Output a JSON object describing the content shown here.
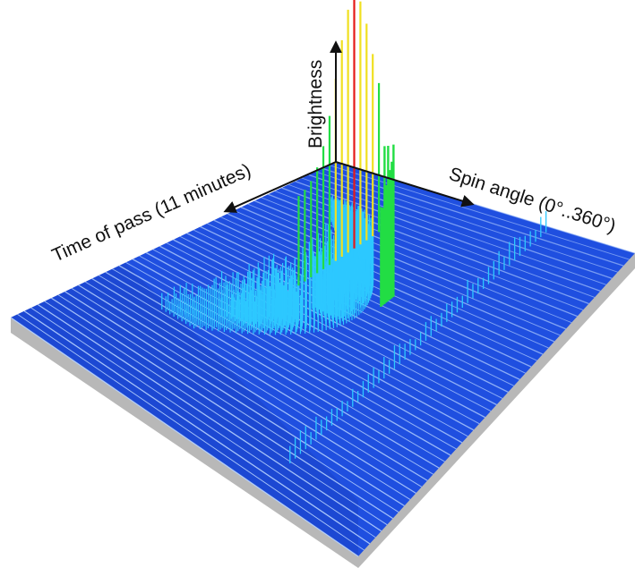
{
  "chart_data": {
    "type": "surface3d",
    "title": "",
    "axes": {
      "z_label": "Brightness",
      "time_label": "Time of pass (11 minutes)",
      "angle_label": "Spin angle (0°..360°)"
    },
    "angle_range_deg": [
      0,
      360
    ],
    "time_range_min": [
      0,
      11
    ],
    "grid_rows": 48,
    "features": [
      {
        "name": "",
        "kind": "arc",
        "peak_level": 0.55
      },
      {
        "name": "",
        "kind": "spike",
        "peak_level": 1.0
      },
      {
        "name": "",
        "kind": "ridge",
        "peak_level": 0.28
      }
    ]
  },
  "colors": {
    "surface": "#1f4fe0",
    "surface_edge": "#0a2fb0",
    "shadow": "#b8b8b8",
    "low": "#2dc8ff",
    "mid": "#22dd44",
    "high": "#f0e020",
    "peak": "#e41a1a",
    "axis": "#111111"
  }
}
